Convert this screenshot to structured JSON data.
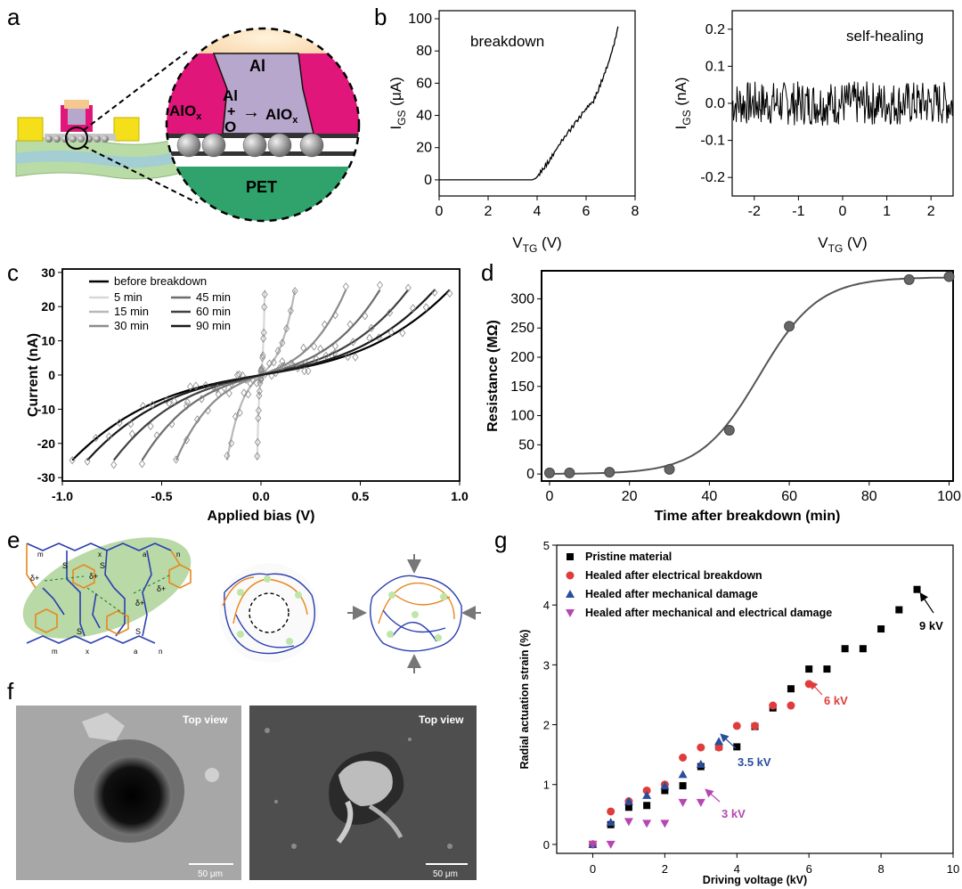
{
  "panel_labels": {
    "a": "a",
    "b": "b",
    "c": "c",
    "d": "d",
    "e": "e",
    "f": "f",
    "g": "g"
  },
  "panel_a": {
    "labels": {
      "al": "Al",
      "aliox": "AlO",
      "aliox_sub": "x",
      "al_reac": "Al",
      "plus": "+",
      "o": "O",
      "arrow": "→",
      "prod": "AlO",
      "prod_sub": "x",
      "pet": "PET"
    },
    "colors": {
      "al": "#f5c890",
      "alox": "#e0167a",
      "core": "#b8a7cc",
      "pet": "#2fa36b",
      "bead": "#8a8a8a"
    }
  },
  "panel_f": {
    "top_view_left": "Top view",
    "top_view_right": "Top view",
    "scale_left": "50 μm",
    "scale_right": "50 μm"
  },
  "panel_e": {
    "labels": {
      "m": "m",
      "x": "x",
      "a": "a",
      "n": "n",
      "s": "S",
      "dplus": "δ+"
    }
  },
  "chart_data": [
    {
      "id": "b-left",
      "type": "line",
      "annotation": "breakdown",
      "xlabel": "V",
      "xlabel_sub": "TG",
      "xlabel_unit": " (V)",
      "ylabel": "I",
      "ylabel_sub": "GS",
      "ylabel_unit": " (μA)",
      "xlim": [
        0,
        8
      ],
      "ylim": [
        -10,
        105
      ],
      "xticks": [
        0,
        2,
        4,
        6,
        8
      ],
      "yticks": [
        0,
        20,
        40,
        60,
        80,
        100
      ],
      "x": [
        0,
        1,
        2,
        3,
        3.8,
        3.95,
        4.1,
        4.3,
        4.5,
        4.7,
        5.0,
        5.3,
        5.6,
        5.9,
        6.1,
        6.3,
        6.5,
        6.7,
        6.9,
        7.1,
        7.3
      ],
      "y": [
        0,
        0,
        0,
        0,
        0,
        1,
        4,
        8,
        12,
        17,
        24,
        30,
        36,
        42,
        46,
        49,
        56,
        64,
        72,
        82,
        94
      ]
    },
    {
      "id": "b-right",
      "type": "line",
      "annotation": "self-healing",
      "xlabel": "V",
      "xlabel_sub": "TG",
      "xlabel_unit": " (V)",
      "ylabel": "I",
      "ylabel_sub": "GS",
      "ylabel_unit": " (nA)",
      "xlim": [
        -2.5,
        2.5
      ],
      "ylim": [
        -0.25,
        0.25
      ],
      "xticks": [
        -2,
        -1,
        0,
        1,
        2
      ],
      "yticks": [
        -0.2,
        -0.1,
        0.0,
        0.1,
        0.2
      ],
      "noise_amplitude": 0.06
    },
    {
      "id": "c",
      "type": "line",
      "xlabel": "Applied bias (V)",
      "ylabel": "Current (nA)",
      "xlim": [
        -1.0,
        1.0
      ],
      "ylim": [
        -31,
        31
      ],
      "xticks": [
        -1.0,
        -0.5,
        0.0,
        0.5,
        1.0
      ],
      "yticks": [
        -30,
        -20,
        -10,
        0,
        10,
        20,
        30
      ],
      "series": [
        {
          "name": "before breakdown",
          "color": "#000000",
          "k": 2000,
          "xmax": 1.0
        },
        {
          "name": "5 min",
          "color": "#d8d8d8",
          "k": 2000,
          "xmax": 0.02
        },
        {
          "name": "15 min",
          "color": "#b8b8b8",
          "k": 2000,
          "xmax": 0.18
        },
        {
          "name": "30 min",
          "color": "#8c8c8c",
          "k": 2000,
          "xmax": 0.45
        },
        {
          "name": "45 min",
          "color": "#6c6c6c",
          "k": 2000,
          "xmax": 0.63
        },
        {
          "name": "60 min",
          "color": "#404040",
          "k": 2000,
          "xmax": 0.78
        },
        {
          "name": "90 min",
          "color": "#1a1a1a",
          "k": 2000,
          "xmax": 0.92
        }
      ]
    },
    {
      "id": "d",
      "type": "scatter",
      "xlabel": "Time after breakdown (min)",
      "ylabel": "Resistance (MΩ)",
      "xlim": [
        -2,
        101
      ],
      "ylim": [
        -12,
        348
      ],
      "xticks": [
        0,
        20,
        40,
        60,
        80,
        100
      ],
      "yticks": [
        0,
        50,
        100,
        150,
        200,
        250,
        300
      ],
      "x": [
        0,
        5,
        15,
        30,
        45,
        60,
        90,
        100
      ],
      "y": [
        2,
        2,
        3,
        8,
        75,
        253,
        333,
        338
      ],
      "fit": {
        "L": 337,
        "x0": 52.5,
        "k": 0.135
      }
    },
    {
      "id": "g",
      "type": "scatter",
      "xlabel": "Driving voltage (kV)",
      "ylabel": "Radial actuation strain (%)",
      "xlim": [
        -1,
        10
      ],
      "ylim": [
        -0.15,
        5
      ],
      "xticks": [
        0,
        2,
        4,
        6,
        8,
        10
      ],
      "yticks": [
        0,
        1,
        2,
        3,
        4,
        5
      ],
      "series": [
        {
          "name": "Pristine material",
          "color": "#000000",
          "marker": "square",
          "x": [
            0,
            0.5,
            1,
            1.5,
            2,
            2.5,
            3,
            3.5,
            4,
            4.5,
            5,
            5.5,
            6,
            6.5,
            7,
            7.5,
            8,
            8.5,
            9
          ],
          "y": [
            0,
            0.33,
            0.62,
            0.65,
            0.9,
            0.98,
            1.3,
            1.63,
            1.63,
            1.97,
            2.28,
            2.6,
            2.93,
            2.93,
            3.27,
            3.27,
            3.6,
            3.92,
            4.26
          ]
        },
        {
          "name": "Healed after electrical breakdown",
          "color": "#e03c3c",
          "marker": "circle",
          "x": [
            0,
            0.5,
            1,
            1.5,
            2,
            2.5,
            3,
            3.5,
            4,
            4.5,
            5,
            5.5,
            6
          ],
          "y": [
            0,
            0.55,
            0.72,
            0.9,
            1.0,
            1.45,
            1.62,
            1.62,
            1.98,
            1.98,
            2.32,
            2.32,
            2.68
          ]
        },
        {
          "name": "Healed after mechanical damage",
          "color": "#2a4e9c",
          "marker": "triangle-up",
          "x": [
            0,
            0.5,
            1,
            1.5,
            2,
            2.5,
            3,
            3.5
          ],
          "y": [
            0,
            0.37,
            0.72,
            0.82,
            0.98,
            1.17,
            1.34,
            1.72
          ]
        },
        {
          "name": "Healed after mechanical and electrical damage",
          "color": "#b646b4",
          "marker": "triangle-down",
          "x": [
            0,
            0.5,
            1,
            1.5,
            2,
            2.5,
            3
          ],
          "y": [
            0,
            0.0,
            0.38,
            0.35,
            0.35,
            0.7,
            0.7
          ]
        }
      ],
      "annotations": [
        {
          "text": "9 kV",
          "color": "#000000"
        },
        {
          "text": "6 kV",
          "color": "#e03c3c"
        },
        {
          "text": "3.5 kV",
          "color": "#2a4e9c"
        },
        {
          "text": "3 kV",
          "color": "#b646b4"
        }
      ]
    }
  ]
}
